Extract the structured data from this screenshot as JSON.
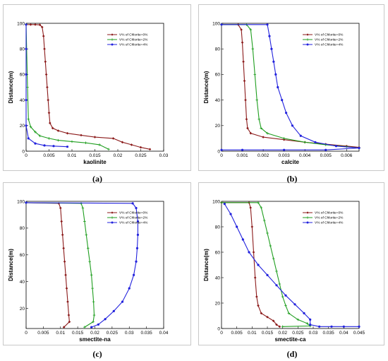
{
  "captions": [
    "(a)",
    "(b)",
    "(c)",
    "(d)"
  ],
  "chart_data": [
    {
      "type": "line",
      "xlabel": "kaolinite",
      "ylabel": "Distance(m)",
      "xlim": [
        0,
        0.03
      ],
      "ylim": [
        0,
        100
      ],
      "xticks": [
        "0",
        "0.005",
        "0.01",
        "0.015",
        "0.02",
        "0.025",
        "0.03"
      ],
      "xtick_values": [
        0,
        0.005,
        0.01,
        0.015,
        0.02,
        0.025,
        0.03
      ],
      "yticks": [
        "0",
        "20",
        "40",
        "60",
        "80",
        "100"
      ],
      "ytick_values": [
        0,
        20,
        40,
        60,
        80,
        100
      ],
      "legend_position": "top-right",
      "series": [
        {
          "name": "V% of Chlorite=0%",
          "color": "#8b1a1a",
          "marker": "diamond",
          "points": [
            [
              0.0,
              99
            ],
            [
              0.001,
              99
            ],
            [
              0.002,
              99
            ],
            [
              0.003,
              98.8
            ],
            [
              0.0035,
              97
            ],
            [
              0.0038,
              90
            ],
            [
              0.004,
              80
            ],
            [
              0.0042,
              70
            ],
            [
              0.0044,
              60
            ],
            [
              0.0046,
              50
            ],
            [
              0.0048,
              40
            ],
            [
              0.005,
              30
            ],
            [
              0.0052,
              22
            ],
            [
              0.0058,
              18
            ],
            [
              0.007,
              16
            ],
            [
              0.009,
              14
            ],
            [
              0.012,
              12.5
            ],
            [
              0.015,
              11
            ],
            [
              0.019,
              10
            ],
            [
              0.021,
              7
            ],
            [
              0.023,
              5
            ],
            [
              0.025,
              3
            ],
            [
              0.027,
              1.5
            ]
          ]
        },
        {
          "name": "V% of Chlorite=2%",
          "color": "#1f9e1f",
          "marker": "plus",
          "points": [
            [
              0.0,
              99
            ],
            [
              0.0003,
              50
            ],
            [
              0.0005,
              25
            ],
            [
              0.001,
              19
            ],
            [
              0.002,
              15
            ],
            [
              0.003,
              12
            ],
            [
              0.005,
              10
            ],
            [
              0.007,
              8.5
            ],
            [
              0.01,
              7.5
            ],
            [
              0.013,
              6.5
            ],
            [
              0.016,
              5
            ],
            [
              0.018,
              1.5
            ]
          ]
        },
        {
          "name": "V% of Chlorite=4%",
          "color": "#2222dd",
          "marker": "circle",
          "points": [
            [
              0.0,
              99
            ],
            [
              0.0,
              80
            ],
            [
              0.0,
              60
            ],
            [
              0.0,
              40
            ],
            [
              0.0,
              20
            ],
            [
              0.0005,
              10
            ],
            [
              0.002,
              6
            ],
            [
              0.004,
              4.5
            ],
            [
              0.006,
              4
            ],
            [
              0.009,
              3.5
            ]
          ]
        }
      ]
    },
    {
      "type": "line",
      "xlabel": "calcite",
      "ylabel": "Distance(m)",
      "xlim": [
        0,
        0.0066
      ],
      "ylim": [
        0,
        100
      ],
      "xticks": [
        "0",
        "0.001",
        "0.002",
        "0.003",
        "0.004",
        "0.005",
        "0.006"
      ],
      "xtick_values": [
        0,
        0.001,
        0.002,
        0.003,
        0.004,
        0.005,
        0.006
      ],
      "yticks": [
        "0",
        "20",
        "40",
        "60",
        "80",
        "100"
      ],
      "ytick_values": [
        0,
        20,
        40,
        60,
        80,
        100
      ],
      "legend_position": "top-right",
      "series": [
        {
          "name": "V% of Chlorite=0%",
          "color": "#8b1a1a",
          "marker": "diamond",
          "points": [
            [
              0.0,
              99
            ],
            [
              0.0008,
              99
            ],
            [
              0.00095,
              95
            ],
            [
              0.001,
              85
            ],
            [
              0.00105,
              70
            ],
            [
              0.0011,
              55
            ],
            [
              0.00115,
              40
            ],
            [
              0.0012,
              25
            ],
            [
              0.00125,
              18
            ],
            [
              0.0014,
              14
            ],
            [
              0.002,
              11
            ],
            [
              0.003,
              9
            ],
            [
              0.004,
              7
            ],
            [
              0.005,
              5.5
            ],
            [
              0.006,
              4
            ],
            [
              0.0066,
              3
            ]
          ]
        },
        {
          "name": "V% of Chlorite=2%",
          "color": "#1f9e1f",
          "marker": "plus",
          "points": [
            [
              0.0,
              99
            ],
            [
              0.0012,
              99
            ],
            [
              0.0014,
              95
            ],
            [
              0.0015,
              80
            ],
            [
              0.0016,
              60
            ],
            [
              0.0017,
              40
            ],
            [
              0.0018,
              25
            ],
            [
              0.0019,
              18
            ],
            [
              0.0022,
              14
            ],
            [
              0.003,
              10
            ],
            [
              0.004,
              7
            ],
            [
              0.005,
              5
            ],
            [
              0.006,
              3.5
            ],
            [
              0.0066,
              2.5
            ]
          ]
        },
        {
          "name": "V% of Chlorite=4%",
          "color": "#2222dd",
          "marker": "circle",
          "points": [
            [
              0.0,
              99
            ],
            [
              0.0022,
              99
            ],
            [
              0.0023,
              90
            ],
            [
              0.0024,
              80
            ],
            [
              0.0025,
              70
            ],
            [
              0.0026,
              60
            ],
            [
              0.0027,
              50
            ],
            [
              0.0029,
              40
            ],
            [
              0.0031,
              30
            ],
            [
              0.0034,
              20
            ],
            [
              0.0038,
              12
            ],
            [
              0.0045,
              7
            ],
            [
              0.0055,
              4
            ],
            [
              0.0066,
              2.5
            ],
            [
              0.005,
              1
            ],
            [
              0.003,
              1
            ],
            [
              0.001,
              1
            ],
            [
              0.0,
              1
            ]
          ]
        }
      ]
    },
    {
      "type": "line",
      "xlabel": "smectite-na",
      "ylabel": "Distance(m)",
      "xlim": [
        0,
        0.04
      ],
      "ylim": [
        5,
        100
      ],
      "xticks": [
        "0",
        "0.005",
        "0.01",
        "0.015",
        "0.02",
        "0.025",
        "0.03",
        "0.035",
        "0.04"
      ],
      "xtick_values": [
        0,
        0.005,
        0.01,
        0.015,
        0.02,
        0.025,
        0.03,
        0.035,
        0.04
      ],
      "yticks": [
        "20",
        "40",
        "60",
        "80",
        "100"
      ],
      "ytick_values": [
        20,
        40,
        60,
        80,
        100
      ],
      "legend_position": "top-right",
      "series": [
        {
          "name": "V% of Chlorite=0%",
          "color": "#8b1a1a",
          "marker": "diamond",
          "points": [
            [
              0.0,
              99
            ],
            [
              0.0095,
              98.5
            ],
            [
              0.01,
              95
            ],
            [
              0.0103,
              85
            ],
            [
              0.0106,
              75
            ],
            [
              0.0109,
              65
            ],
            [
              0.0112,
              55
            ],
            [
              0.0115,
              45
            ],
            [
              0.0118,
              35
            ],
            [
              0.0121,
              25
            ],
            [
              0.0124,
              15
            ],
            [
              0.0126,
              10
            ],
            [
              0.011,
              6
            ]
          ]
        },
        {
          "name": "V% of Chlorite=2%",
          "color": "#1f9e1f",
          "marker": "plus",
          "points": [
            [
              0.0,
              99
            ],
            [
              0.016,
              98.5
            ],
            [
              0.0165,
              95
            ],
            [
              0.017,
              85
            ],
            [
              0.0175,
              75
            ],
            [
              0.018,
              65
            ],
            [
              0.0185,
              55
            ],
            [
              0.019,
              45
            ],
            [
              0.0193,
              35
            ],
            [
              0.0196,
              25
            ],
            [
              0.0198,
              15
            ],
            [
              0.0195,
              10
            ],
            [
              0.017,
              6
            ]
          ]
        },
        {
          "name": "V% of Chlorite=4%",
          "color": "#2222dd",
          "marker": "circle",
          "points": [
            [
              0.0,
              99
            ],
            [
              0.031,
              98.5
            ],
            [
              0.032,
              95
            ],
            [
              0.0325,
              85
            ],
            [
              0.0325,
              75
            ],
            [
              0.0323,
              65
            ],
            [
              0.032,
              55
            ],
            [
              0.0313,
              45
            ],
            [
              0.03,
              35
            ],
            [
              0.028,
              25
            ],
            [
              0.0255,
              18
            ],
            [
              0.023,
              12
            ],
            [
              0.021,
              8
            ],
            [
              0.019,
              6
            ]
          ]
        }
      ]
    },
    {
      "type": "line",
      "xlabel": "smectite-ca",
      "ylabel": "Distance(m)",
      "xlim": [
        0,
        0.045
      ],
      "ylim": [
        0,
        100
      ],
      "xticks": [
        "0",
        "0.005",
        "0.01",
        "0.015",
        "0.02",
        "0.025",
        "0.03",
        "0.035",
        "0.04",
        "0.045"
      ],
      "xtick_values": [
        0,
        0.005,
        0.01,
        0.015,
        0.02,
        0.025,
        0.03,
        0.035,
        0.04,
        0.045
      ],
      "yticks": [
        "0",
        "20",
        "40",
        "60",
        "80",
        "100"
      ],
      "ytick_values": [
        0,
        20,
        40,
        60,
        80,
        100
      ],
      "legend_position": "top-right",
      "series": [
        {
          "name": "V% of Chlorite=0%",
          "color": "#8b1a1a",
          "marker": "diamond",
          "points": [
            [
              0.0,
              99
            ],
            [
              0.009,
              99
            ],
            [
              0.0095,
              95
            ],
            [
              0.01,
              80
            ],
            [
              0.0105,
              60
            ],
            [
              0.011,
              40
            ],
            [
              0.0115,
              25
            ],
            [
              0.012,
              18
            ],
            [
              0.013,
              12
            ],
            [
              0.015,
              9
            ],
            [
              0.017,
              6
            ],
            [
              0.018,
              3
            ],
            [
              0.019,
              1.5
            ]
          ]
        },
        {
          "name": "V% of Chlorite=2%",
          "color": "#1f9e1f",
          "marker": "plus",
          "points": [
            [
              0.0,
              99
            ],
            [
              0.012,
              99
            ],
            [
              0.013,
              95
            ],
            [
              0.014,
              85
            ],
            [
              0.015,
              75
            ],
            [
              0.016,
              65
            ],
            [
              0.017,
              55
            ],
            [
              0.018,
              45
            ],
            [
              0.019,
              35
            ],
            [
              0.02,
              25
            ],
            [
              0.021,
              18
            ],
            [
              0.022,
              12
            ],
            [
              0.025,
              7
            ],
            [
              0.028,
              4
            ],
            [
              0.029,
              2
            ],
            [
              0.02,
              1.5
            ]
          ]
        },
        {
          "name": "V% of Chlorite=4%",
          "color": "#2222dd",
          "marker": "circle",
          "points": [
            [
              0.001,
              98
            ],
            [
              0.003,
              90
            ],
            [
              0.005,
              80
            ],
            [
              0.007,
              70
            ],
            [
              0.009,
              60
            ],
            [
              0.012,
              50
            ],
            [
              0.015,
              42
            ],
            [
              0.018,
              34
            ],
            [
              0.021,
              26
            ],
            [
              0.024,
              19
            ],
            [
              0.027,
              12
            ],
            [
              0.029,
              7
            ],
            [
              0.029,
              3
            ],
            [
              0.032,
              1.5
            ],
            [
              0.036,
              1.5
            ],
            [
              0.04,
              1.5
            ],
            [
              0.045,
              1.5
            ]
          ]
        }
      ]
    }
  ]
}
